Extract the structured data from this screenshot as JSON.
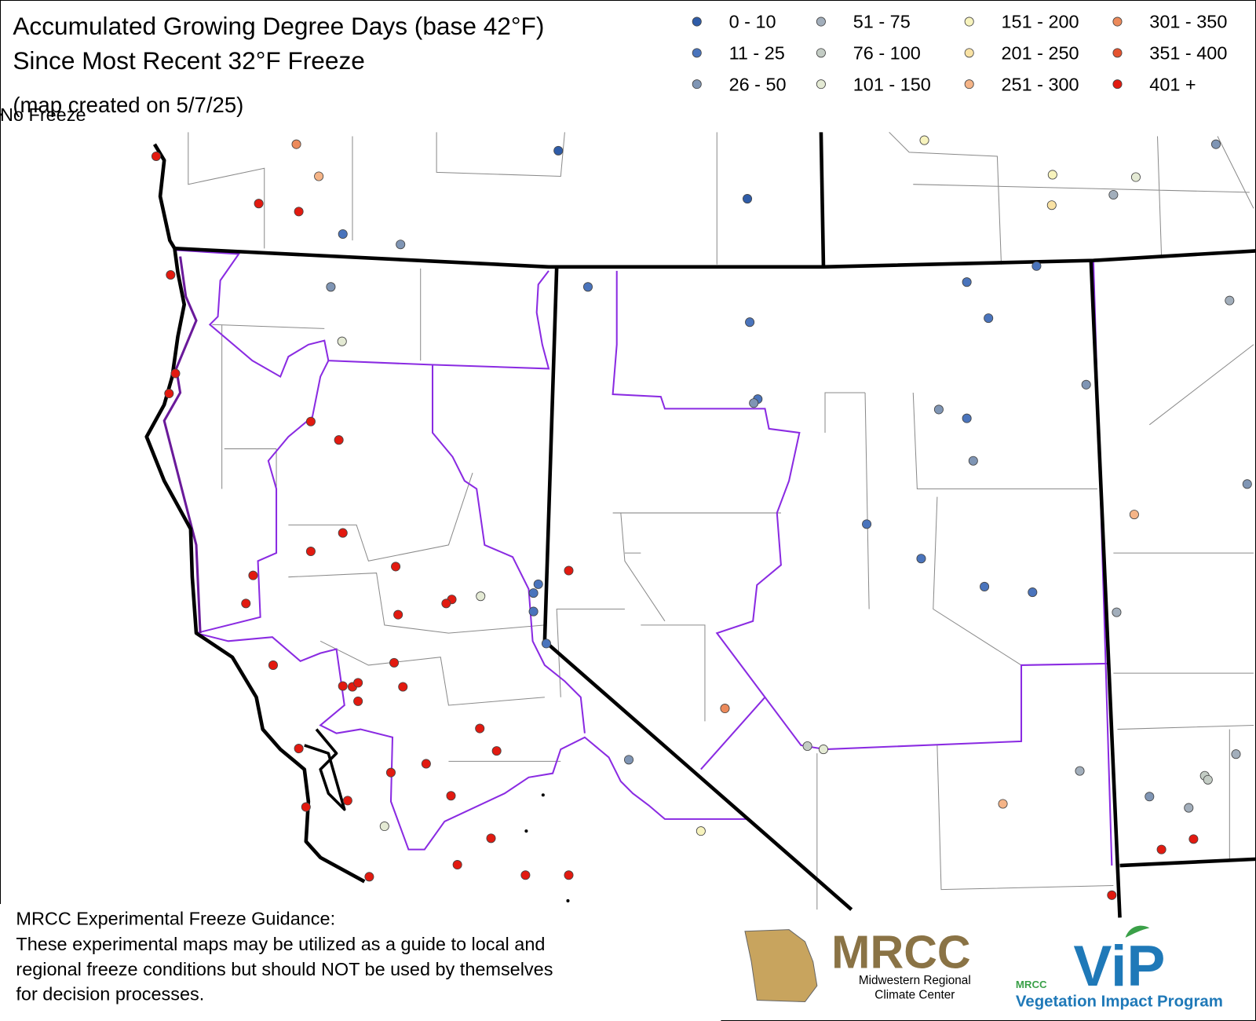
{
  "title_lines": [
    "Accumulated Growing Degree Days (base 42°F)",
    "Since Most Recent 32°F Freeze"
  ],
  "subtitle": "(map created on 5/7/25)",
  "legend": [
    {
      "label": "0 - 10",
      "color": "#2f5ca8"
    },
    {
      "label": "11 - 25",
      "color": "#4a74bc"
    },
    {
      "label": "26 - 50",
      "color": "#7f95b4"
    },
    {
      "label": "51 - 75",
      "color": "#a2aebb"
    },
    {
      "label": "76 - 100",
      "color": "#c3ccc4"
    },
    {
      "label": "101 - 150",
      "color": "#e4ead4"
    },
    {
      "label": "151 - 200",
      "color": "#f7f3bd"
    },
    {
      "label": "201 - 250",
      "color": "#f9e2a4"
    },
    {
      "label": "251 - 300",
      "color": "#f5b487"
    },
    {
      "label": "301 - 350",
      "color": "#ec8a5b"
    },
    {
      "label": "351 - 400",
      "color": "#e4532f"
    },
    {
      "label": "401 +",
      "color": "#e21a10"
    },
    {
      "label": "No Freeze",
      "color": "#000000"
    }
  ],
  "disclaimer": {
    "heading": "MRCC Experimental Freeze Guidance:",
    "lines": [
      "These experimental maps may be utilized as a guide to local and",
      "regional freeze conditions but should NOT be used by themselves",
      "for decision processes."
    ]
  },
  "logos": {
    "mrcc": "MRCC",
    "mrcc_sub": [
      "Midwestern Regional",
      "Climate Center"
    ],
    "vip_small": "MRCC",
    "vip": "ViP",
    "vip_sub": "Vegetation Impact Program"
  }
}
